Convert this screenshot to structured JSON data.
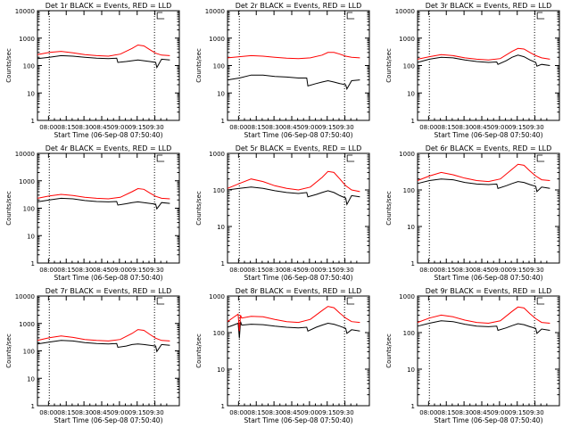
{
  "colors": {
    "events": "#000000",
    "lld": "#ff0000",
    "axis": "#000000",
    "background": "#ffffff"
  },
  "chart_data": [
    {
      "type": "line",
      "title": "Det 1r BLACK = Events, RED = LLD",
      "xlabel": "Start Time (06-Sep-08 07:50:40)",
      "ylabel": "Counts/sec",
      "xscale": "time",
      "yscale": "log",
      "ylim": [
        1,
        10000
      ],
      "xticks": [
        "08:00",
        "08:15",
        "08:30",
        "08:45",
        "09:00",
        "09:15",
        "09:30"
      ],
      "yticks": [
        "1",
        "10",
        "100",
        "1000",
        "10000"
      ],
      "vlines_minutes": [
        10,
        99
      ],
      "series": [
        {
          "name": "Events",
          "color": "#000000",
          "x_minutes": [
            0,
            10,
            20,
            30,
            40,
            50,
            60,
            67,
            68,
            75,
            80,
            85,
            90,
            95,
            100,
            101,
            105,
            112
          ],
          "values": [
            180,
            200,
            230,
            220,
            200,
            185,
            180,
            185,
            130,
            140,
            150,
            160,
            150,
            140,
            130,
            85,
            170,
            160
          ]
        },
        {
          "name": "LLD",
          "color": "#ff0000",
          "x_minutes": [
            0,
            10,
            20,
            30,
            40,
            50,
            60,
            70,
            80,
            85,
            90,
            95,
            100,
            105,
            112
          ],
          "values": [
            250,
            300,
            330,
            290,
            250,
            230,
            220,
            260,
            420,
            560,
            520,
            380,
            280,
            240,
            230
          ]
        }
      ]
    },
    {
      "type": "line",
      "title": "Det 2r BLACK = Events, RED = LLD",
      "xlabel": "Start Time (06-Sep-08 07:50:40)",
      "ylabel": "Counts/sec",
      "xscale": "time",
      "yscale": "log",
      "ylim": [
        1,
        10000
      ],
      "xticks": [
        "08:00",
        "08:15",
        "08:30",
        "08:45",
        "09:00",
        "09:15",
        "09:30"
      ],
      "yticks": [
        "1",
        "10",
        "100",
        "1000",
        "10000"
      ],
      "vlines_minutes": [
        10,
        99
      ],
      "series": [
        {
          "name": "Events",
          "color": "#000000",
          "x_minutes": [
            0,
            10,
            20,
            30,
            40,
            50,
            60,
            67,
            68,
            75,
            80,
            85,
            90,
            95,
            100,
            101,
            105,
            112
          ],
          "values": [
            30,
            35,
            45,
            45,
            40,
            38,
            35,
            35,
            18,
            22,
            25,
            28,
            25,
            22,
            20,
            14,
            28,
            30
          ]
        },
        {
          "name": "LLD",
          "color": "#ff0000",
          "x_minutes": [
            0,
            10,
            20,
            30,
            40,
            50,
            60,
            70,
            80,
            85,
            90,
            95,
            100,
            105,
            112
          ],
          "values": [
            190,
            210,
            230,
            220,
            200,
            185,
            180,
            190,
            240,
            300,
            300,
            260,
            220,
            200,
            190
          ]
        }
      ]
    },
    {
      "type": "line",
      "title": "Det 3r BLACK = Events, RED = LLD",
      "xlabel": "Start Time (06-Sep-08 07:50:40)",
      "ylabel": "Counts/sec",
      "xscale": "time",
      "yscale": "log",
      "ylim": [
        1,
        10000
      ],
      "xticks": [
        "08:00",
        "08:15",
        "08:30",
        "08:45",
        "09:00",
        "09:15",
        "09:30"
      ],
      "yticks": [
        "1",
        "10",
        "100",
        "1000",
        "10000"
      ],
      "vlines_minutes": [
        10,
        99
      ],
      "series": [
        {
          "name": "Events",
          "color": "#000000",
          "x_minutes": [
            0,
            10,
            20,
            30,
            40,
            50,
            60,
            67,
            68,
            75,
            80,
            85,
            90,
            95,
            100,
            101,
            105,
            112
          ],
          "values": [
            130,
            170,
            200,
            190,
            160,
            140,
            130,
            135,
            110,
            150,
            200,
            240,
            210,
            160,
            130,
            95,
            110,
            100
          ]
        },
        {
          "name": "LLD",
          "color": "#ff0000",
          "x_minutes": [
            0,
            10,
            20,
            30,
            40,
            50,
            60,
            70,
            80,
            85,
            90,
            95,
            100,
            105,
            112
          ],
          "values": [
            170,
            210,
            250,
            230,
            190,
            170,
            160,
            180,
            330,
            420,
            400,
            300,
            230,
            190,
            170
          ]
        }
      ]
    },
    {
      "type": "line",
      "title": "Det 4r BLACK = Events, RED = LLD",
      "xlabel": "Start Time (06-Sep-08 07:50:40)",
      "ylabel": "Counts/sec",
      "xscale": "time",
      "yscale": "log",
      "ylim": [
        1,
        10000
      ],
      "xticks": [
        "08:00",
        "08:15",
        "08:30",
        "08:45",
        "09:00",
        "09:15",
        "09:30"
      ],
      "yticks": [
        "1",
        "10",
        "100",
        "1000",
        "10000"
      ],
      "vlines_minutes": [
        10,
        99
      ],
      "series": [
        {
          "name": "Events",
          "color": "#000000",
          "x_minutes": [
            0,
            10,
            20,
            30,
            40,
            50,
            60,
            67,
            68,
            75,
            80,
            85,
            90,
            95,
            100,
            101,
            105,
            112
          ],
          "values": [
            170,
            200,
            230,
            220,
            190,
            175,
            170,
            175,
            130,
            145,
            160,
            170,
            160,
            150,
            140,
            95,
            160,
            150
          ]
        },
        {
          "name": "LLD",
          "color": "#ff0000",
          "x_minutes": [
            0,
            10,
            20,
            30,
            40,
            50,
            60,
            70,
            80,
            85,
            90,
            95,
            100,
            105,
            112
          ],
          "values": [
            230,
            280,
            320,
            290,
            250,
            230,
            220,
            250,
            400,
            520,
            490,
            360,
            270,
            230,
            220
          ]
        }
      ]
    },
    {
      "type": "line",
      "title": "Det 5r BLACK = Events, RED = LLD",
      "xlabel": "Start Time (06-Sep-08 07:50:40)",
      "ylabel": "Counts/sec",
      "xscale": "time",
      "yscale": "log",
      "ylim": [
        1,
        1000
      ],
      "xticks": [
        "08:00",
        "08:15",
        "08:30",
        "08:45",
        "09:00",
        "09:15",
        "09:30"
      ],
      "yticks": [
        "1",
        "10",
        "100",
        "1000"
      ],
      "vlines_minutes": [
        10,
        99
      ],
      "series": [
        {
          "name": "Events",
          "color": "#000000",
          "x_minutes": [
            0,
            10,
            20,
            30,
            40,
            50,
            60,
            67,
            68,
            75,
            80,
            85,
            90,
            95,
            100,
            101,
            105,
            112
          ],
          "values": [
            100,
            110,
            120,
            110,
            95,
            85,
            80,
            85,
            65,
            75,
            85,
            95,
            85,
            70,
            60,
            40,
            70,
            65
          ]
        },
        {
          "name": "LLD",
          "color": "#ff0000",
          "x_minutes": [
            0,
            10,
            20,
            30,
            40,
            50,
            60,
            70,
            80,
            85,
            90,
            95,
            100,
            105,
            112
          ],
          "values": [
            110,
            150,
            200,
            170,
            130,
            110,
            100,
            120,
            220,
            320,
            300,
            200,
            130,
            100,
            90
          ]
        }
      ]
    },
    {
      "type": "line",
      "title": "Det 6r BLACK = Events, RED = LLD",
      "xlabel": "Start Time (06-Sep-08 07:50:40)",
      "ylabel": "Counts/sec",
      "xscale": "time",
      "yscale": "log",
      "ylim": [
        1,
        1000
      ],
      "xticks": [
        "08:00",
        "08:15",
        "08:30",
        "08:45",
        "09:00",
        "09:15",
        "09:30"
      ],
      "yticks": [
        "1",
        "10",
        "100",
        "1000"
      ],
      "vlines_minutes": [
        10,
        99
      ],
      "series": [
        {
          "name": "Events",
          "color": "#000000",
          "x_minutes": [
            0,
            10,
            20,
            30,
            40,
            50,
            60,
            67,
            68,
            75,
            80,
            85,
            90,
            95,
            100,
            101,
            105,
            112
          ],
          "values": [
            150,
            180,
            200,
            190,
            160,
            145,
            140,
            145,
            110,
            130,
            150,
            170,
            160,
            140,
            125,
            90,
            120,
            110
          ]
        },
        {
          "name": "LLD",
          "color": "#ff0000",
          "x_minutes": [
            0,
            10,
            20,
            30,
            40,
            50,
            60,
            70,
            80,
            85,
            90,
            95,
            100,
            105,
            112
          ],
          "values": [
            180,
            240,
            300,
            260,
            210,
            180,
            170,
            200,
            370,
            500,
            470,
            330,
            240,
            190,
            180
          ]
        }
      ]
    },
    {
      "type": "line",
      "title": "Det 7r BLACK = Events, RED = LLD",
      "xlabel": "Start Time (06-Sep-08 07:50:40)",
      "ylabel": "Counts/sec",
      "xscale": "time",
      "yscale": "log",
      "ylim": [
        1,
        10000
      ],
      "xticks": [
        "08:00",
        "08:15",
        "08:30",
        "08:45",
        "09:00",
        "09:15",
        "09:30"
      ],
      "yticks": [
        "1",
        "10",
        "100",
        "1000",
        "10000"
      ],
      "vlines_minutes": [
        10,
        99
      ],
      "series": [
        {
          "name": "Events",
          "color": "#000000",
          "x_minutes": [
            0,
            10,
            20,
            30,
            40,
            50,
            60,
            67,
            68,
            75,
            80,
            85,
            90,
            95,
            100,
            101,
            105,
            112
          ],
          "values": [
            180,
            210,
            240,
            230,
            200,
            185,
            180,
            185,
            135,
            150,
            170,
            180,
            170,
            160,
            150,
            95,
            170,
            160
          ]
        },
        {
          "name": "LLD",
          "color": "#ff0000",
          "x_minutes": [
            0,
            10,
            20,
            30,
            40,
            50,
            60,
            70,
            80,
            85,
            90,
            95,
            100,
            105,
            112
          ],
          "values": [
            240,
            300,
            350,
            310,
            260,
            240,
            230,
            260,
            430,
            600,
            560,
            400,
            290,
            240,
            230
          ]
        }
      ]
    },
    {
      "type": "line",
      "title": "Det 8r BLACK = Events, RED = LLD",
      "xlabel": "Start Time (06-Sep-08 07:50:40)",
      "ylabel": "Counts/sec",
      "xscale": "time",
      "yscale": "log",
      "ylim": [
        1,
        1000
      ],
      "xticks": [
        "08:00",
        "08:15",
        "08:30",
        "08:45",
        "09:00",
        "09:15",
        "09:30"
      ],
      "yticks": [
        "1",
        "10",
        "100",
        "1000"
      ],
      "vlines_minutes": [
        10,
        99
      ],
      "series": [
        {
          "name": "Events",
          "color": "#000000",
          "x_minutes": [
            0,
            5,
            9,
            10,
            11,
            12,
            20,
            30,
            40,
            50,
            60,
            67,
            68,
            75,
            80,
            85,
            90,
            95,
            100,
            101,
            105,
            112
          ],
          "values": [
            140,
            160,
            180,
            70,
            200,
            160,
            170,
            165,
            150,
            140,
            135,
            140,
            110,
            140,
            160,
            180,
            170,
            150,
            130,
            95,
            120,
            110
          ]
        },
        {
          "name": "LLD",
          "color": "#ff0000",
          "x_minutes": [
            0,
            5,
            9,
            10,
            11,
            12,
            20,
            30,
            40,
            50,
            60,
            70,
            80,
            85,
            90,
            95,
            100,
            105,
            112
          ],
          "values": [
            200,
            260,
            320,
            110,
            300,
            250,
            280,
            270,
            230,
            200,
            190,
            230,
            400,
            520,
            480,
            340,
            250,
            200,
            190
          ]
        }
      ]
    },
    {
      "type": "line",
      "title": "Det 9r BLACK = Events, RED = LLD",
      "xlabel": "Start Time (06-Sep-08 07:50:40)",
      "ylabel": "Counts/sec",
      "xscale": "time",
      "yscale": "log",
      "ylim": [
        1,
        1000
      ],
      "xticks": [
        "08:00",
        "08:15",
        "08:30",
        "08:45",
        "09:00",
        "09:15",
        "09:30"
      ],
      "yticks": [
        "1",
        "10",
        "100",
        "1000"
      ],
      "vlines_minutes": [
        10,
        99
      ],
      "series": [
        {
          "name": "Events",
          "color": "#000000",
          "x_minutes": [
            0,
            10,
            20,
            30,
            40,
            50,
            60,
            67,
            68,
            75,
            80,
            85,
            90,
            95,
            100,
            101,
            105,
            112
          ],
          "values": [
            150,
            180,
            210,
            200,
            170,
            150,
            145,
            150,
            115,
            135,
            155,
            175,
            165,
            145,
            130,
            95,
            125,
            115
          ]
        },
        {
          "name": "LLD",
          "color": "#ff0000",
          "x_minutes": [
            0,
            10,
            20,
            30,
            40,
            50,
            60,
            70,
            80,
            85,
            90,
            95,
            100,
            105,
            112
          ],
          "values": [
            190,
            250,
            300,
            270,
            220,
            190,
            180,
            210,
            380,
            500,
            470,
            330,
            240,
            190,
            180
          ]
        }
      ]
    }
  ]
}
